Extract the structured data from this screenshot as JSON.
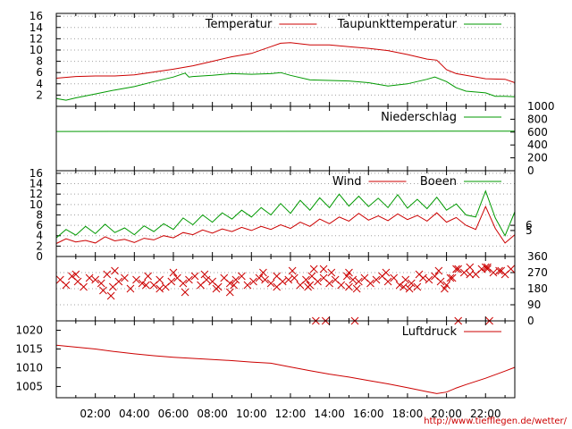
{
  "credit": "http://www.tiefflegen.de/wetter/",
  "x_axis": {
    "tick_labels": [
      "02:00",
      "04:00",
      "06:00",
      "08:00",
      "10:00",
      "12:00",
      "14:00",
      "16:00",
      "18:00",
      "20:00",
      "22:00"
    ]
  },
  "colors": {
    "series_primary": "#cc0000",
    "series_secondary": "#009900",
    "grid": "#a0a0a0"
  },
  "chart_data": [
    {
      "type": "line",
      "legend_placement": "top-right",
      "grid": true,
      "x_unit": "hour",
      "xlim": [
        0,
        23.5
      ],
      "ylim": [
        0,
        16.5
      ],
      "y_ticks": [
        2,
        4,
        6,
        8,
        10,
        12,
        14,
        16
      ],
      "series": [
        {
          "name": "Temperatur",
          "color": "#cc0000",
          "x": [
            0,
            1,
            2,
            3,
            4,
            5,
            6,
            7,
            8,
            9,
            10,
            11,
            11.5,
            12,
            13,
            14,
            15,
            16,
            17,
            18,
            19,
            19.5,
            20,
            20.5,
            21,
            22,
            23,
            23.5
          ],
          "y": [
            5.0,
            5.3,
            5.4,
            5.4,
            5.6,
            6.1,
            6.6,
            7.2,
            8.0,
            8.8,
            9.4,
            10.6,
            11.2,
            11.3,
            10.9,
            10.9,
            10.6,
            10.3,
            9.9,
            9.2,
            8.4,
            8.2,
            6.5,
            5.8,
            5.5,
            4.9,
            4.8,
            4.2
          ]
        },
        {
          "name": "Taupunkttemperatur",
          "color": "#009900",
          "x": [
            0,
            0.5,
            1,
            2,
            3,
            4,
            5,
            6,
            6.6,
            6.8,
            7,
            8,
            9,
            10,
            11,
            11.5,
            12,
            13,
            14,
            15,
            16,
            17,
            18,
            19,
            19.4,
            20,
            20.5,
            21,
            22,
            22.5,
            23,
            23.5
          ],
          "y": [
            1.4,
            1.1,
            1.5,
            2.2,
            2.9,
            3.5,
            4.4,
            5.2,
            5.9,
            5.2,
            5.3,
            5.5,
            5.8,
            5.7,
            5.8,
            6.0,
            5.5,
            4.7,
            4.6,
            4.5,
            4.2,
            3.6,
            4.0,
            4.8,
            5.2,
            4.4,
            3.3,
            2.7,
            2.4,
            1.8,
            1.8,
            1.7
          ]
        }
      ]
    },
    {
      "type": "line",
      "legend_placement": "top-right",
      "grid": false,
      "x_unit": "hour",
      "xlim": [
        0,
        23.5
      ],
      "ylim": [
        0,
        1000
      ],
      "y_ticks": [
        0,
        200,
        400,
        600,
        800,
        1000
      ],
      "y_axis_side": "right",
      "series": [
        {
          "name": "Niederschlag",
          "color": "#009900",
          "x": [
            0,
            23.5
          ],
          "y": [
            610,
            615
          ]
        }
      ]
    },
    {
      "type": "line",
      "legend_placement": "top-right",
      "grid": true,
      "x_unit": "hour",
      "xlim": [
        0,
        23.5
      ],
      "ylim": [
        0,
        16.5
      ],
      "y_ticks": [
        0,
        2,
        4,
        6,
        8,
        10,
        12,
        14,
        16
      ],
      "right_ticks": [
        5,
        6
      ],
      "series": [
        {
          "name": "Wind",
          "color": "#cc0000",
          "x": [
            0,
            0.5,
            1,
            1.5,
            2,
            2.5,
            3,
            3.5,
            4,
            4.5,
            5,
            5.5,
            6,
            6.5,
            7,
            7.5,
            8,
            8.5,
            9,
            9.5,
            10,
            10.5,
            11,
            11.5,
            12,
            12.5,
            13,
            13.5,
            14,
            14.5,
            15,
            15.5,
            16,
            16.5,
            17,
            17.5,
            18,
            18.5,
            19,
            19.5,
            20,
            20.5,
            21,
            21.5,
            22,
            22.5,
            23,
            23.5
          ],
          "y": [
            2.5,
            3.4,
            2.8,
            3.1,
            2.6,
            3.8,
            3.0,
            3.3,
            2.7,
            3.5,
            3.2,
            4.0,
            3.6,
            4.6,
            4.2,
            5.1,
            4.5,
            5.3,
            4.8,
            5.6,
            5.0,
            5.8,
            5.2,
            6.1,
            5.4,
            6.6,
            5.8,
            7.2,
            6.3,
            7.6,
            6.8,
            8.3,
            7.0,
            7.8,
            6.9,
            8.2,
            7.1,
            7.9,
            6.8,
            8.4,
            6.6,
            7.5,
            6.0,
            5.2,
            9.6,
            5.4,
            2.6,
            4.2
          ]
        },
        {
          "name": "Boeen",
          "color": "#009900",
          "x": [
            0,
            0.5,
            1,
            1.5,
            2,
            2.5,
            3,
            3.5,
            4,
            4.5,
            5,
            5.5,
            6,
            6.5,
            7,
            7.5,
            8,
            8.5,
            9,
            9.5,
            10,
            10.5,
            11,
            11.5,
            12,
            12.5,
            13,
            13.5,
            14,
            14.5,
            15,
            15.5,
            16,
            16.5,
            17,
            17.5,
            18,
            18.5,
            19,
            19.5,
            20,
            20.5,
            21,
            21.5,
            22,
            22.5,
            23,
            23.5
          ],
          "y": [
            3.6,
            5.2,
            4.1,
            5.8,
            4.4,
            6.2,
            4.6,
            5.5,
            4.2,
            5.9,
            4.8,
            6.3,
            5.2,
            7.4,
            6.1,
            8.0,
            6.6,
            8.4,
            7.2,
            8.9,
            7.6,
            9.4,
            8.0,
            10.2,
            8.3,
            10.8,
            8.9,
            11.3,
            9.4,
            12.0,
            9.7,
            11.6,
            9.6,
            11.2,
            9.4,
            11.9,
            9.3,
            11.0,
            9.2,
            11.4,
            8.9,
            10.1,
            8.0,
            7.6,
            12.6,
            7.4,
            4.0,
            8.6
          ]
        }
      ]
    },
    {
      "type": "scatter",
      "legend_placement": "none",
      "grid": true,
      "x_unit": "hour",
      "xlim": [
        0,
        23.5
      ],
      "ylim": [
        0,
        360
      ],
      "y_ticks": [
        0,
        90,
        180,
        270,
        360
      ],
      "y_axis_side": "right",
      "marker": "x",
      "series": [
        {
          "name": "",
          "color": "#cc0000",
          "x": [
            0.2,
            0.5,
            0.8,
            1.1,
            1.4,
            1.7,
            2.0,
            2.3,
            2.6,
            2.9,
            3.2,
            3.5,
            3.8,
            4.1,
            4.4,
            4.7,
            5.0,
            5.3,
            5.6,
            5.9,
            6.2,
            6.5,
            6.8,
            7.1,
            7.4,
            7.7,
            8.0,
            8.3,
            8.6,
            8.9,
            9.2,
            9.5,
            9.8,
            10.1,
            10.4,
            10.7,
            11.0,
            11.3,
            11.6,
            11.9,
            12.2,
            12.5,
            12.8,
            13.1,
            13.4,
            13.7,
            14.0,
            14.3,
            14.6,
            14.9,
            15.2,
            15.5,
            15.8,
            16.1,
            16.4,
            16.7,
            17.0,
            17.3,
            17.6,
            17.9,
            18.2,
            18.5,
            18.8,
            19.1,
            19.4,
            19.7,
            20.0,
            20.3,
            20.6,
            20.9,
            21.2,
            21.5,
            21.8,
            22.1,
            22.4,
            22.7,
            23.0,
            23.3,
            1.0,
            2.4,
            3.0,
            4.6,
            5.3,
            6.0,
            7.6,
            8.2,
            9.1,
            10.6,
            11.3,
            12.1,
            13.0,
            14.1,
            15.4,
            16.9,
            17.8,
            18.6,
            19.6,
            20.2,
            21.2,
            22.0,
            22.8,
            2.8,
            6.6,
            8.9,
            12.9,
            15.0,
            18.1,
            19.9,
            13.2,
            13.7,
            15.0,
            20.5,
            22.1,
            13.3,
            13.8,
            15.3,
            20.6,
            22.2
          ],
          "y": [
            230,
            200,
            250,
            220,
            190,
            240,
            230,
            210,
            260,
            190,
            220,
            240,
            180,
            230,
            210,
            250,
            200,
            230,
            190,
            220,
            240,
            210,
            230,
            250,
            200,
            230,
            220,
            190,
            240,
            210,
            230,
            250,
            200,
            220,
            240,
            230,
            210,
            250,
            220,
            230,
            240,
            200,
            230,
            250,
            220,
            240,
            210,
            230,
            200,
            250,
            230,
            220,
            240,
            210,
            230,
            250,
            220,
            240,
            200,
            230,
            210,
            190,
            240,
            230,
            250,
            220,
            200,
            240,
            290,
            270,
            300,
            260,
            290,
            300,
            270,
            280,
            260,
            290,
            260,
            170,
            280,
            200,
            180,
            270,
            260,
            180,
            200,
            270,
            190,
            280,
            200,
            270,
            180,
            270,
            190,
            260,
            280,
            240,
            260,
            300,
            280,
            140,
            160,
            160,
            190,
            190,
            180,
            180,
            290,
            290,
            270,
            290,
            290,
            0,
            0,
            0,
            0,
            0
          ]
        }
      ]
    },
    {
      "type": "line",
      "legend_placement": "top-right",
      "grid": false,
      "x_unit": "hour",
      "xlim": [
        0,
        23.5
      ],
      "ylim": [
        1002,
        1022.5
      ],
      "y_ticks": [
        1005,
        1010,
        1015,
        1020
      ],
      "series": [
        {
          "name": "Luftdruck",
          "color": "#cc0000",
          "x": [
            0,
            1,
            2,
            3,
            4,
            5,
            6,
            7,
            8,
            9,
            10,
            11,
            12,
            13,
            14,
            15,
            16,
            17,
            18,
            19,
            19.5,
            20,
            20.5,
            21,
            22,
            23,
            23.5
          ],
          "y": [
            1016.0,
            1015.5,
            1015.0,
            1014.3,
            1013.7,
            1013.2,
            1012.8,
            1012.5,
            1012.2,
            1011.9,
            1011.5,
            1011.2,
            1010.2,
            1009.2,
            1008.3,
            1007.5,
            1006.6,
            1005.7,
            1004.7,
            1003.6,
            1003.1,
            1003.5,
            1004.6,
            1005.5,
            1007.2,
            1009.1,
            1010.1
          ]
        }
      ]
    }
  ]
}
